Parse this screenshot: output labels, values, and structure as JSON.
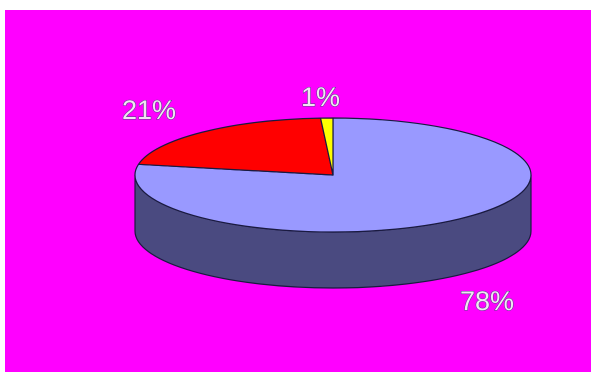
{
  "chart_data": {
    "type": "pie",
    "style": "3d",
    "background_color": "#ff00ff",
    "labels": [
      "78%",
      "21%",
      "1%"
    ],
    "values": [
      78,
      21,
      1
    ],
    "colors": [
      "#9999ff",
      "#ff0000",
      "#ffff00"
    ],
    "side_colors": [
      "#4a4a80",
      "#8a0000",
      "#8a8a00"
    ],
    "legend": "none",
    "grid": false
  }
}
